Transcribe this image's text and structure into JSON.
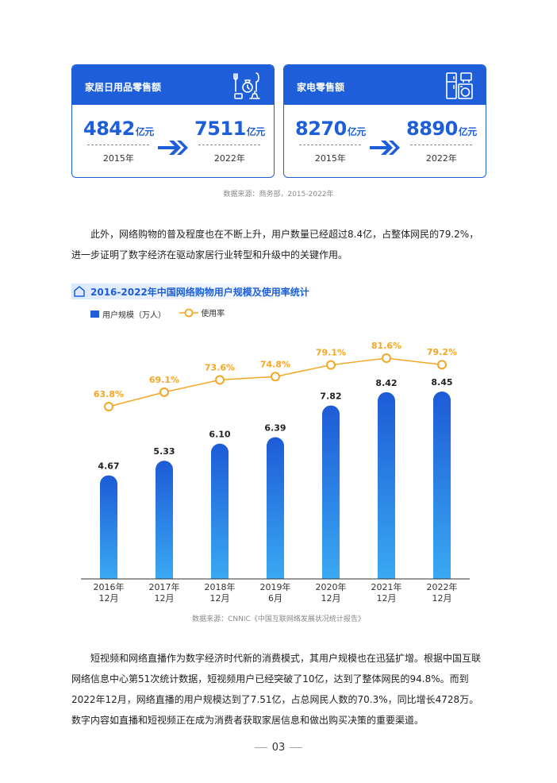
{
  "cards": [
    {
      "title": "家居日用品零售额",
      "icon": "household-goods-icon",
      "from": {
        "value": "4842",
        "unit": "亿元",
        "year": "2015年"
      },
      "to": {
        "value": "7511",
        "unit": "亿元",
        "year": "2022年"
      }
    },
    {
      "title": "家电零售额",
      "icon": "appliances-icon",
      "from": {
        "value": "8270",
        "unit": "亿元",
        "year": "2015年"
      },
      "to": {
        "value": "8890",
        "unit": "亿元",
        "year": "2022年"
      }
    }
  ],
  "source1": "数据来源：商务部，2015-2022年",
  "para1": "此外，网络购物的普及程度也在不断上升，用户数量已经超过8.4亿，占整体网民的79.2%，进一步证明了数字经济在驱动家居行业转型和升级中的关键作用。",
  "chart_title": "2016-2022年中国网络购物用户规模及使用率统计",
  "chart_data": {
    "type": "bar",
    "title": "2016-2022年中国网络购物用户规模及使用率统计",
    "categories": [
      [
        "2016年",
        "12月"
      ],
      [
        "2017年",
        "12月"
      ],
      [
        "2018年",
        "12月"
      ],
      [
        "2019年",
        "6月"
      ],
      [
        "2020年",
        "12月"
      ],
      [
        "2021年",
        "12月"
      ],
      [
        "2022年",
        "12月"
      ]
    ],
    "series": [
      {
        "name": "用户规模（万人）",
        "type": "bar",
        "values": [
          4.67,
          5.33,
          6.1,
          6.39,
          7.82,
          8.42,
          8.45
        ],
        "labels": [
          "4.67",
          "5.33",
          "6.10",
          "6.39",
          "7.82",
          "8.42",
          "8.45"
        ],
        "color": "#1e5fd9"
      },
      {
        "name": "使用率",
        "type": "line",
        "values": [
          63.8,
          69.1,
          73.6,
          74.8,
          79.1,
          81.6,
          79.2
        ],
        "labels": [
          "63.8%",
          "69.1%",
          "73.6%",
          "74.8%",
          "79.1%",
          "81.6%",
          "79.2%"
        ],
        "color": "#f5a623"
      }
    ],
    "legend": "top-left",
    "grid": false
  },
  "source2": "数据来源：CNNIC《中国互联网络发展状况统计报告》",
  "para2": "短视频和网络直播作为数字经济时代新的消费模式，其用户规模也在迅猛扩增。根据中国互联网络信息中心第51次统计数据，短视频用户已经突破了10亿，达到了整体网民的94.8%。而到2022年12月，网络直播的用户规模达到了7.51亿，占总网民人数的70.3%，同比增长4728万。数字内容如直播和短视频正在成为消费者获取家居信息和做出购买决策的重要渠道。",
  "page_number": "03",
  "colors": {
    "accent": "#1e5fd9",
    "line": "#f5a623"
  }
}
